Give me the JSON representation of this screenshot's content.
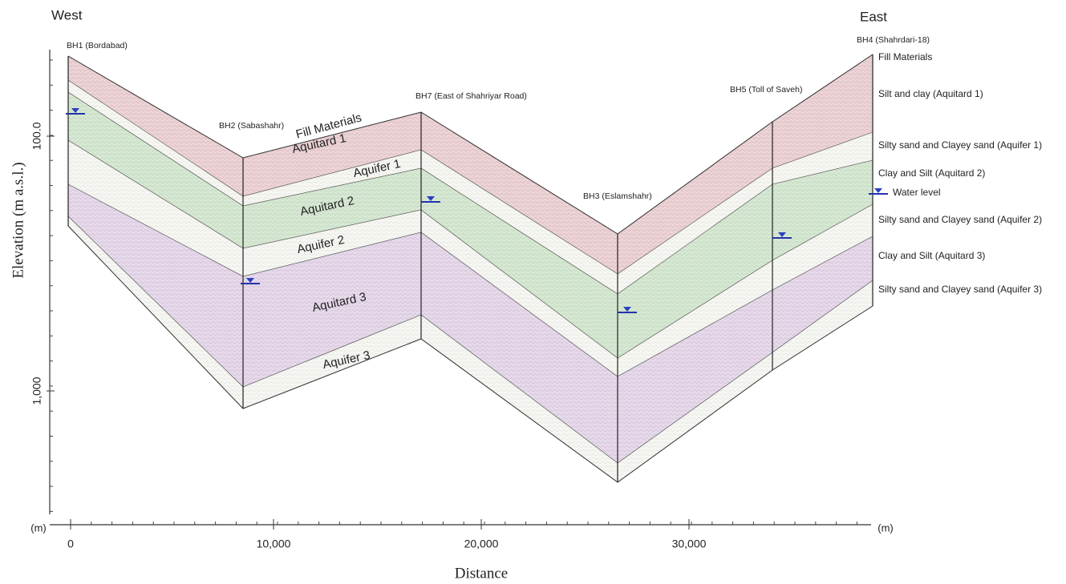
{
  "header": {
    "west": "West",
    "east": "East"
  },
  "axes": {
    "y_title": "Elevation (m a.s.l.)",
    "x_title": "Distance",
    "x_unit": "(m)",
    "x_ticks": [
      "0",
      "10,000",
      "20,000",
      "30,000"
    ],
    "y_ticks": [
      "100.0",
      "1,000"
    ]
  },
  "boreholes": [
    {
      "label": "BH1 (Bordabad)"
    },
    {
      "label": "BH2 (Sabashahr)"
    },
    {
      "label": "BH7 (East of Shahriyar Road)"
    },
    {
      "label": "BH3 (Eslamshahr)"
    },
    {
      "label": "BH5 (Toll of Saveh)"
    },
    {
      "label": "BH4 (Shahrdari-18)"
    }
  ],
  "section_labels": [
    "Fill Materials",
    "Aquitard 1",
    "Aquifer 1",
    "Aquitard 2",
    "Aquifer 2",
    "Aquitard 3",
    "Aquifer 3"
  ],
  "legend": [
    "Fill Materials",
    "Silt and  clay (Aquitard 1)",
    "Silty sand and Clayey sand (Aquifer 1)",
    "Clay and Silt (Aquitard 2)",
    "Water level",
    "Silty sand and Clayey sand (Aquifer 2)",
    "Clay and Silt (Aquitard 3)",
    "Silty sand and Clayey sand (Aquifer 3)"
  ]
}
